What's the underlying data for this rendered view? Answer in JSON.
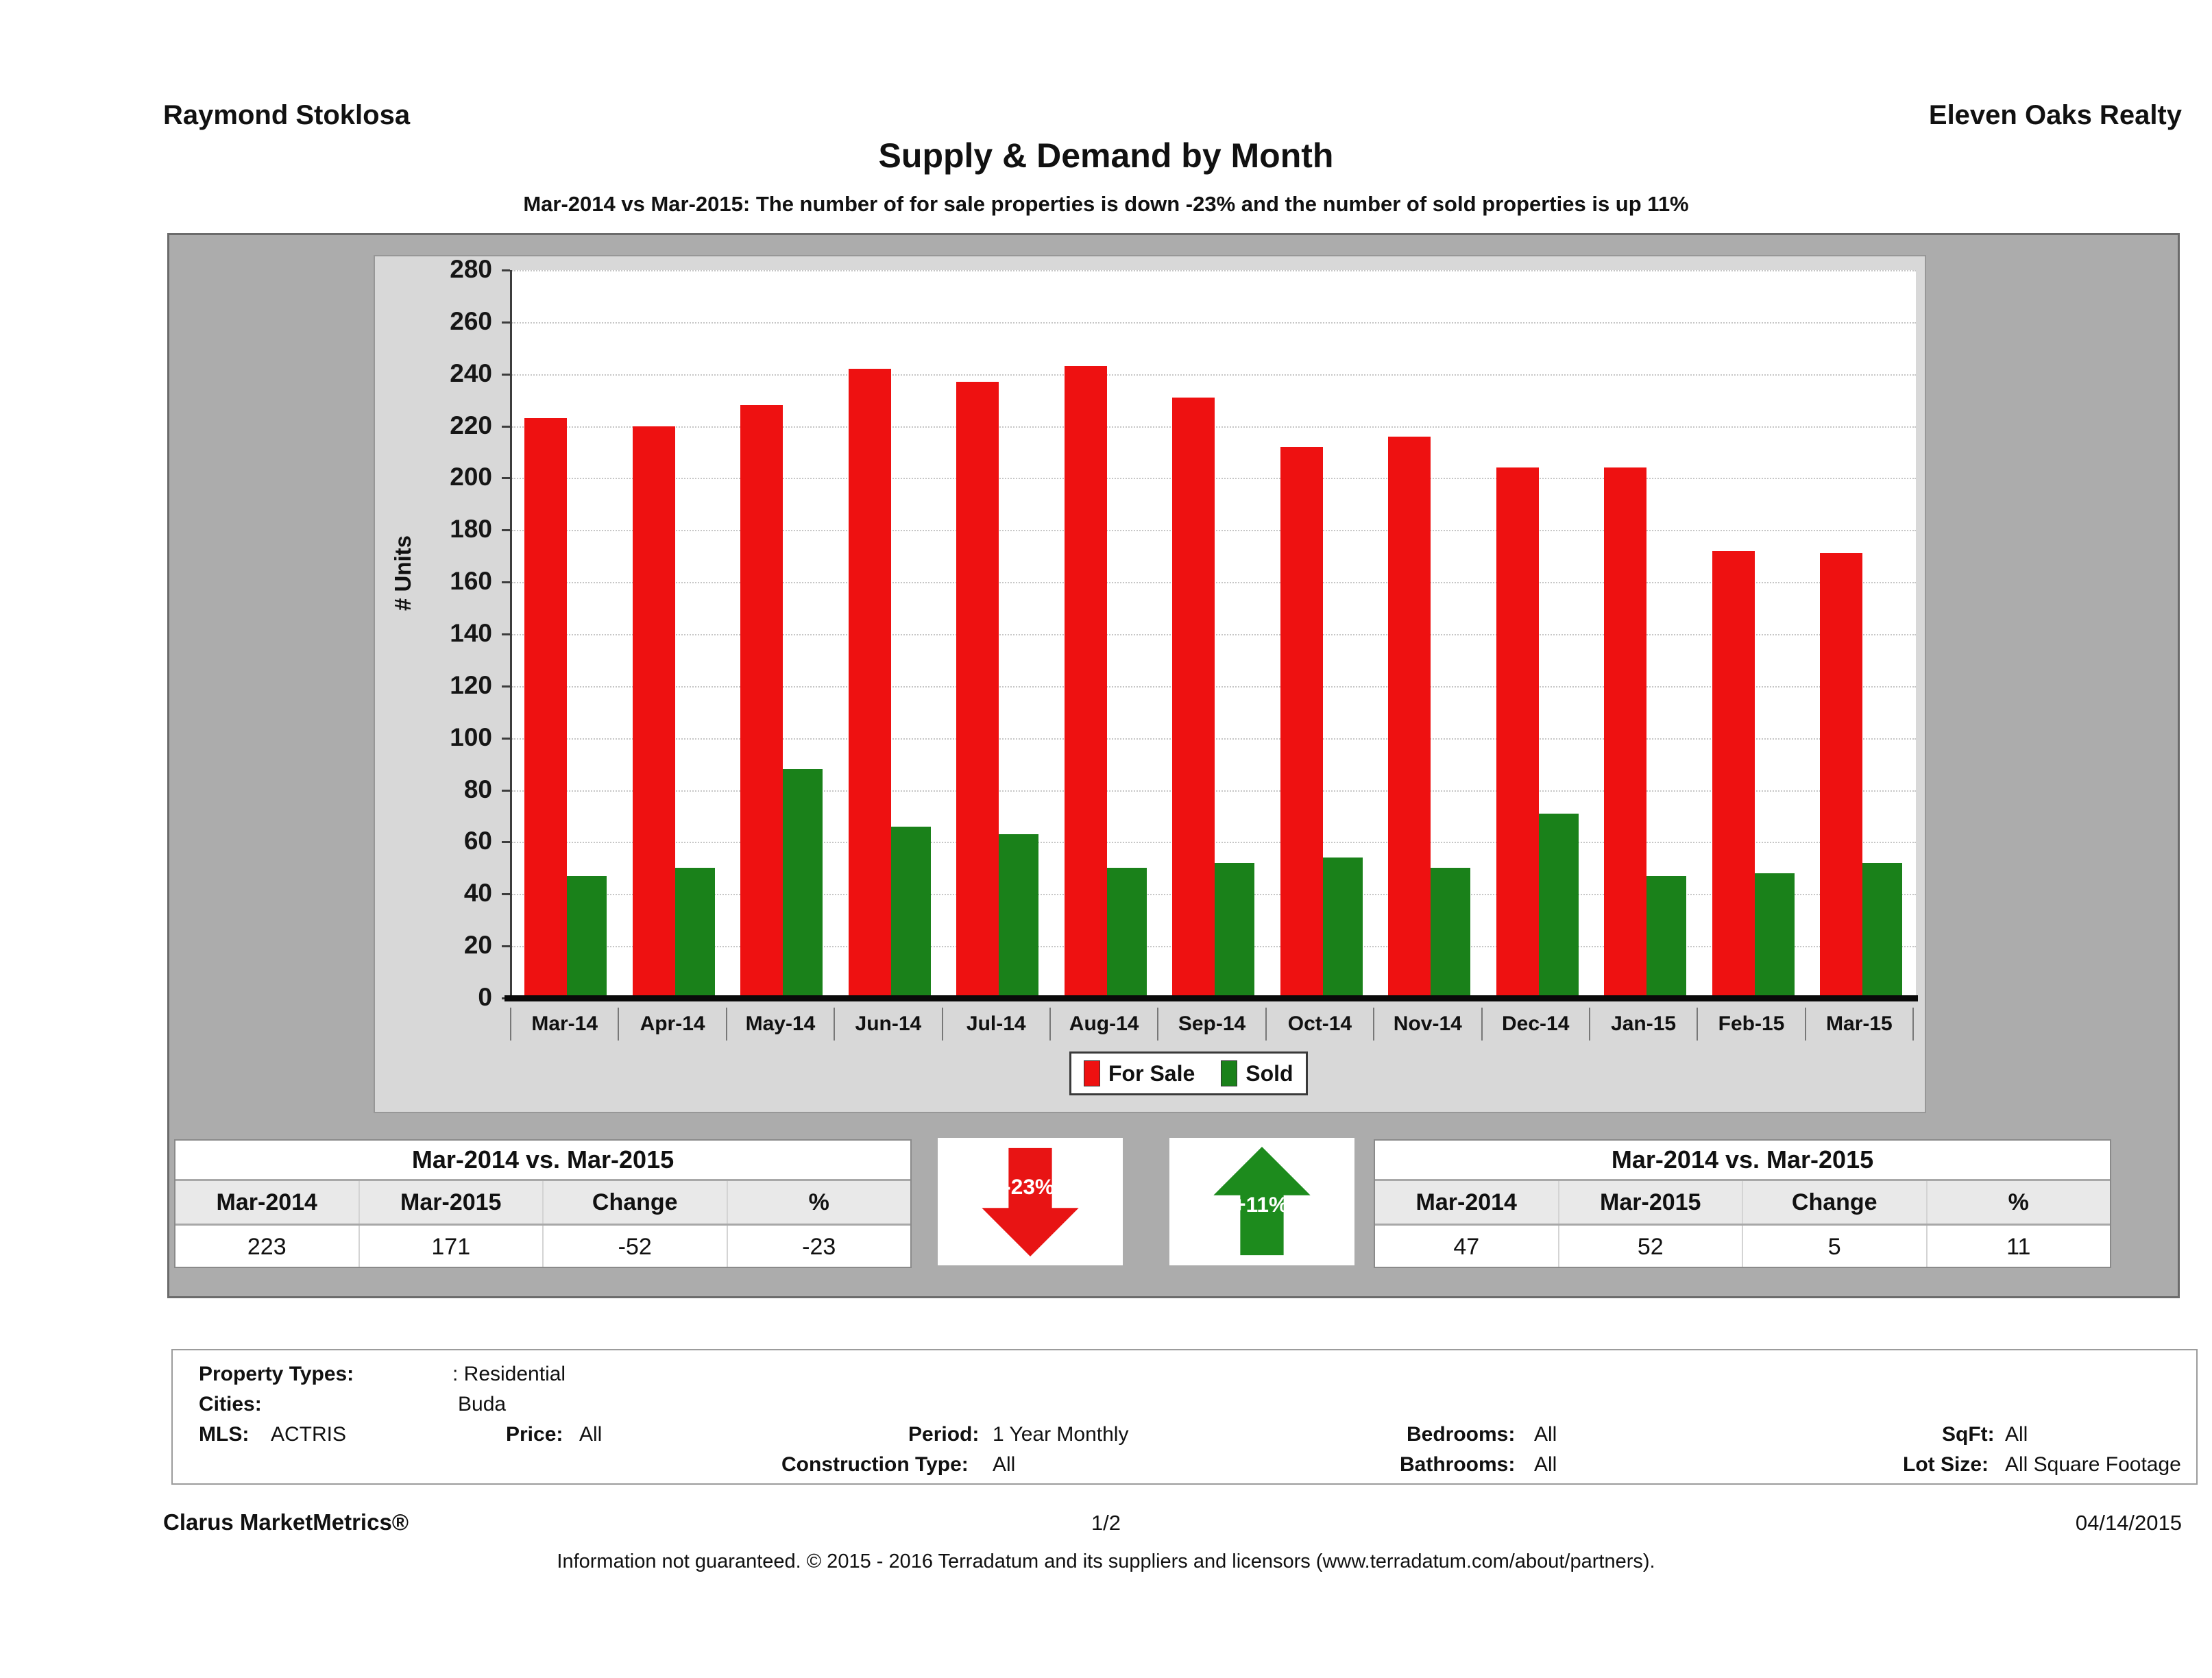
{
  "header": {
    "agent": "Raymond Stoklosa",
    "company": "Eleven Oaks Realty"
  },
  "title": "Supply & Demand by Month",
  "subtitle": "Mar-2014 vs Mar-2015: The number of for sale properties is down -23% and the number of sold properties is up 11%",
  "chart_data": {
    "type": "bar",
    "title": "Supply & Demand by Month",
    "xlabel": "",
    "ylabel": "# Units",
    "ylim": [
      0,
      280
    ],
    "ytick_step": 20,
    "grid": "horizontal-dotted",
    "legend_position": "bottom-center",
    "categories": [
      "Mar-14",
      "Apr-14",
      "May-14",
      "Jun-14",
      "Jul-14",
      "Aug-14",
      "Sep-14",
      "Oct-14",
      "Nov-14",
      "Dec-14",
      "Jan-15",
      "Feb-15",
      "Mar-15"
    ],
    "series": [
      {
        "name": "For Sale",
        "color": "#ee1111",
        "values": [
          223,
          220,
          228,
          242,
          237,
          243,
          231,
          212,
          216,
          204,
          204,
          172,
          171
        ]
      },
      {
        "name": "Sold",
        "color": "#1a811a",
        "values": [
          47,
          50,
          88,
          66,
          63,
          50,
          52,
          54,
          50,
          71,
          47,
          48,
          52
        ]
      }
    ]
  },
  "comparison_tables": {
    "for_sale": {
      "title": "Mar-2014 vs. Mar-2015",
      "headers": [
        "Mar-2014",
        "Mar-2015",
        "Change",
        "%"
      ],
      "values": [
        "223",
        "171",
        "-52",
        "-23"
      ]
    },
    "sold": {
      "title": "Mar-2014 vs. Mar-2015",
      "headers": [
        "Mar-2014",
        "Mar-2015",
        "Change",
        "%"
      ],
      "values": [
        "47",
        "52",
        "5",
        "11"
      ]
    }
  },
  "arrows": {
    "for_sale": {
      "direction": "down",
      "label": "-23%",
      "color": "#e81414"
    },
    "sold": {
      "direction": "up",
      "label": "+11%",
      "color": "#1d8b1d"
    }
  },
  "filters": {
    "property_types_label": "Property Types:",
    "property_types_value": ": Residential",
    "cities_label": "Cities:",
    "cities_value": "Buda",
    "mls_label": "MLS:",
    "mls_value": "ACTRIS",
    "price_label": "Price:",
    "price_value": "All",
    "period_label": "Period:",
    "period_value": "1 Year Monthly",
    "construction_label": "Construction Type:",
    "construction_value": "All",
    "bedrooms_label": "Bedrooms:",
    "bedrooms_value": "All",
    "bathrooms_label": "Bathrooms:",
    "bathrooms_value": "All",
    "sqft_label": "SqFt:",
    "sqft_value": "All",
    "lot_label": "Lot Size:",
    "lot_value": "All Square Footage"
  },
  "footer": {
    "brand": "Clarus MarketMetrics®",
    "page": "1/2",
    "date": "04/14/2015",
    "disclaimer": "Information not guaranteed. © 2015 - 2016 Terradatum and its suppliers and licensors (www.terradatum.com/about/partners)."
  }
}
